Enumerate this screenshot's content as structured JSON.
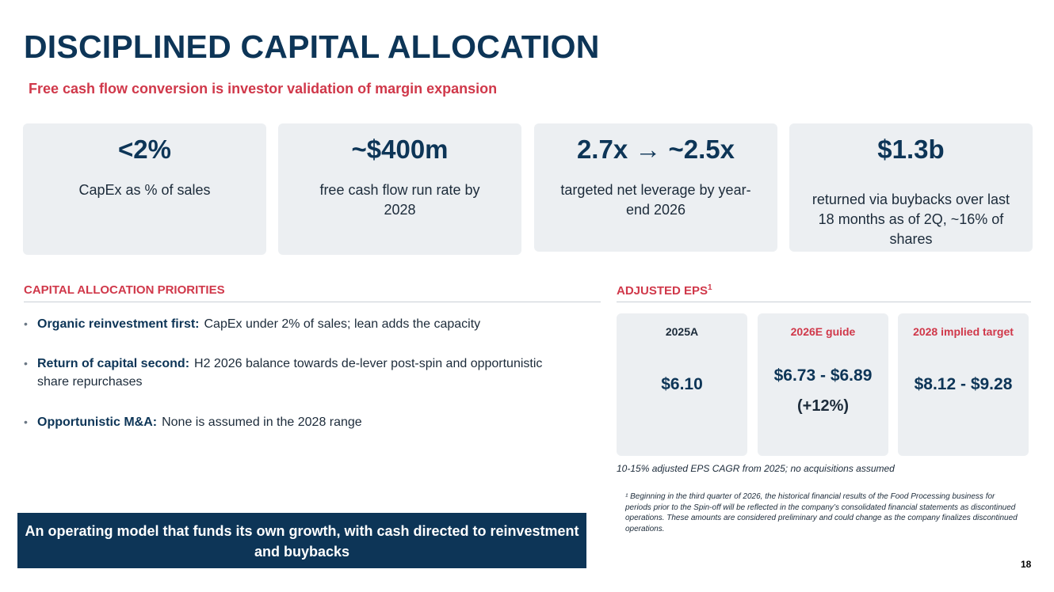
{
  "header": {
    "title": "DISCIPLINED CAPITAL ALLOCATION",
    "subtitle": "Free cash flow conversion is investor validation of margin expansion"
  },
  "kpis": [
    {
      "value": "<2%",
      "desc": "CapEx as % of sales"
    },
    {
      "value": "~$400m",
      "desc": "free cash flow run rate by 2028"
    },
    {
      "value": "2.7x → ~2.5x",
      "desc": "targeted net leverage by year-end 2026"
    },
    {
      "value": "$1.3b",
      "desc": "returned via buybacks over last 18 months as of 2Q, ~16% of shares"
    }
  ],
  "priorities": {
    "heading": "CAPITAL ALLOCATION PRIORITIES",
    "items": [
      {
        "lead": "Organic reinvestment first:",
        "text": "CapEx under 2% of sales; lean adds the capacity"
      },
      {
        "lead": "Return of capital second:",
        "text": "H2 2026 balance towards de-lever post-spin and opportunistic share repurchases"
      },
      {
        "lead": "Opportunistic M&A:",
        "text": "None is assumed in the 2028 range"
      }
    ]
  },
  "eps": {
    "heading": "ADJUSTED EPS",
    "heading_sup": "1",
    "cards": [
      {
        "label": "2025A",
        "value": "$6.10",
        "note": ""
      },
      {
        "label": "2026E guide",
        "value": "$6.73 - $6.89",
        "note": "(+12%)"
      },
      {
        "label": "2028 implied target",
        "value": "$8.12 - $9.28",
        "note": ""
      }
    ],
    "cagr_note": "10-15% adjusted EPS CAGR from 2025; no acquisitions assumed",
    "footnote": "¹ Beginning in the third quarter of 2026, the historical financial results of the Food Processing business for periods prior to the Spin-off will be reflected in the company’s consolidated financial statements as discontinued operations. These amounts are considered preliminary and could change as the company finalizes discontinued operations."
  },
  "banner": {
    "text": "An operating model that funds its own growth, with cash directed to reinvestment and buybacks"
  },
  "page_number": "18",
  "colors": {
    "navy": "#0d3557",
    "accent_red": "#d0384a",
    "card_bg": "#eceff2"
  }
}
